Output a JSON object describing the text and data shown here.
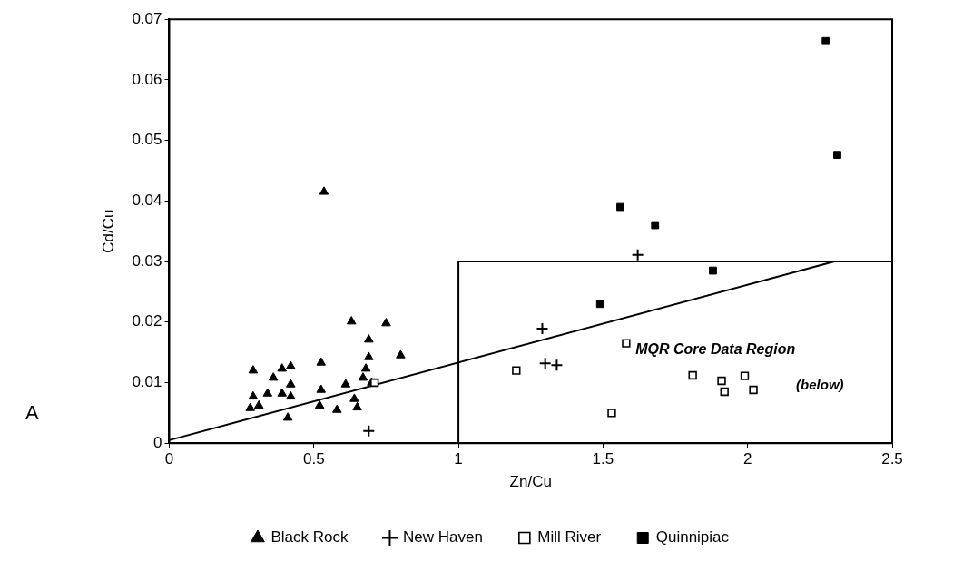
{
  "chart_data": {
    "type": "scatter",
    "xlabel": "Zn/Cu",
    "ylabel": "Cd/Cu",
    "xlim": [
      0,
      2.5
    ],
    "xticks": [
      0,
      0.5,
      1,
      1.5,
      2,
      2.5
    ],
    "ylim": [
      0,
      0.07
    ],
    "yticks": [
      0,
      0.01,
      0.02,
      0.03,
      0.04,
      0.05,
      0.06,
      0.07
    ],
    "grid": false,
    "legend": "bottom",
    "annotations": [
      "A",
      "MQR Core Data Region",
      "(below)"
    ],
    "series": [
      {
        "name": "Black Rock",
        "color": "#000000",
        "marker": "triangle",
        "x": [
          0.535,
          0.63,
          0.75,
          0.69,
          0.8,
          0.69,
          0.525,
          0.29,
          0.42,
          0.39,
          0.36,
          0.68,
          0.67,
          0.61,
          0.7,
          0.42,
          0.29,
          0.34,
          0.39,
          0.42,
          0.525,
          0.64,
          0.28,
          0.52,
          0.58,
          0.41,
          0.65,
          0.31
        ],
        "values": [
          0.0415,
          0.0201,
          0.0198,
          0.0171,
          0.0145,
          0.0142,
          0.0133,
          0.012,
          0.0127,
          0.0123,
          0.0108,
          0.0123,
          0.0108,
          0.0097,
          0.01,
          0.0097,
          0.0077,
          0.0082,
          0.0082,
          0.0077,
          0.0088,
          0.0073,
          0.0058,
          0.0062,
          0.0055,
          0.0042,
          0.0059,
          0.0062
        ]
      },
      {
        "name": "New Haven",
        "color": "#000000",
        "marker": "cross",
        "x": [
          0.69,
          1.62,
          1.29,
          1.3,
          1.34
        ],
        "values": [
          0.002,
          0.0311,
          0.0189,
          0.0132,
          0.0129
        ]
      },
      {
        "name": "Mill River",
        "color": "#000000",
        "marker": "square",
        "x": [
          0.71,
          1.2,
          1.58,
          1.53,
          1.81,
          1.91,
          1.92,
          1.99,
          2.02
        ],
        "values": [
          0.01,
          0.012,
          0.0165,
          0.005,
          0.0112,
          0.0103,
          0.0085,
          0.0111,
          0.0088
        ]
      },
      {
        "name": "Quinnipiac",
        "color": "#000000",
        "marker": "square",
        "x": [
          2.27,
          2.31,
          1.88,
          1.49,
          1.56,
          1.68
        ],
        "values": [
          0.0664,
          0.0476,
          0.0285,
          0.023,
          0.039,
          0.036
        ]
      },
      {
        "type": "line",
        "color": "#000000",
        "marker": "none",
        "x": [
          0,
          2.3
        ],
        "values": [
          0.0005,
          0.03
        ]
      },
      {
        "type": "line",
        "color": "#000000",
        "marker": "none",
        "x": [
          1,
          1,
          2.5
        ],
        "values": [
          0,
          0.03,
          0.03
        ]
      }
    ]
  }
}
